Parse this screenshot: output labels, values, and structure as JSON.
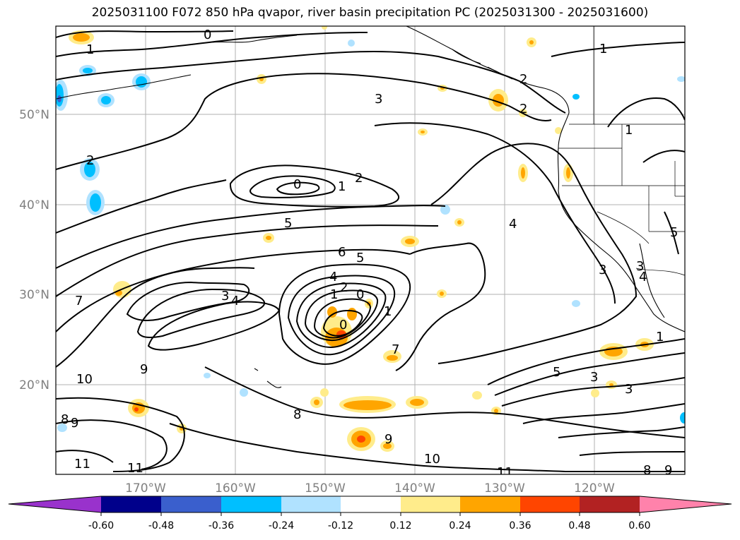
{
  "title": "2025031100 F072 850 hPa qvapor, river basin precipitation PC (2025031300 - 2025031600)",
  "lat_labels": [
    "50°N",
    "40°N",
    "30°N",
    "20°N"
  ],
  "lon_labels": [
    "170°W",
    "160°W",
    "150°W",
    "140°W",
    "130°W",
    "120°W"
  ],
  "contour_labels": [
    "0",
    "1",
    "2",
    "3",
    "0",
    "1",
    "2",
    "5",
    "4",
    "6",
    "5",
    "7",
    "3",
    "4",
    "4",
    "1",
    "2",
    "0",
    "0",
    "1",
    "7",
    "9",
    "10",
    "8",
    "9",
    "8",
    "9",
    "11",
    "11",
    "10",
    "11",
    "8",
    "9",
    "1",
    "2",
    "2",
    "5",
    "3",
    "3",
    "3",
    "1",
    "1",
    "3",
    "4",
    "5"
  ],
  "colorbar": {
    "tick_labels": [
      "-0.60",
      "-0.48",
      "-0.36",
      "-0.24",
      "-0.12",
      "0.12",
      "0.24",
      "0.36",
      "0.48",
      "0.60"
    ],
    "colors": [
      "#9932cc",
      "#00008b",
      "#3a5fcd",
      "#00bfff",
      "#b0e2ff",
      "#ffffff",
      "#ffec8b",
      "#ffa500",
      "#ff4500",
      "#b22222",
      "#ff82ab"
    ]
  },
  "colors": {
    "contour": "#000000",
    "grid": "#b0b0b0",
    "axis_label": "#808080"
  }
}
